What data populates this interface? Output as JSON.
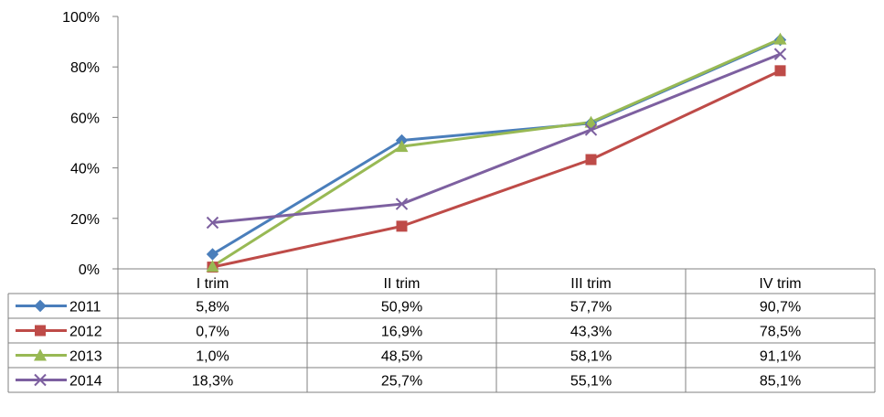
{
  "chart_data": {
    "type": "line",
    "categories": [
      "I trim",
      "II trim",
      "III trim",
      "IV trim"
    ],
    "yticks": [
      "0%",
      "20%",
      "40%",
      "60%",
      "80%",
      "100%"
    ],
    "ylim": [
      0,
      100
    ],
    "grid": false,
    "legend": "data-table",
    "series": [
      {
        "name": "2011",
        "color": "#4A7EBB",
        "marker": "diamond",
        "values": [
          5.8,
          50.9,
          57.7,
          90.7
        ],
        "labels": [
          "5,8%",
          "50,9%",
          "57,7%",
          "90,7%"
        ]
      },
      {
        "name": "2012",
        "color": "#BE4B48",
        "marker": "square",
        "values": [
          0.7,
          16.9,
          43.3,
          78.5
        ],
        "labels": [
          "0,7%",
          "16,9%",
          "43,3%",
          "78,5%"
        ]
      },
      {
        "name": "2013",
        "color": "#98B954",
        "marker": "triangle",
        "values": [
          1.0,
          48.5,
          58.1,
          91.1
        ],
        "labels": [
          "1,0%",
          "48,5%",
          "58,1%",
          "91,1%"
        ]
      },
      {
        "name": "2014",
        "color": "#7D60A0",
        "marker": "x",
        "values": [
          18.3,
          25.7,
          55.1,
          85.1
        ],
        "labels": [
          "18,3%",
          "25,7%",
          "55,1%",
          "85,1%"
        ]
      }
    ]
  }
}
